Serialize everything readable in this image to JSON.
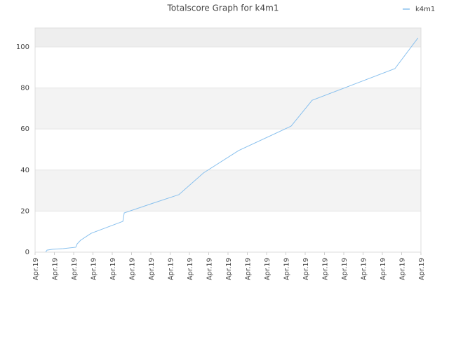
{
  "chart_data": {
    "type": "line",
    "title": "Totalscore Graph for k4m1",
    "x": [
      0.55,
      0.62,
      0.91,
      1.45,
      2.11,
      2.18,
      2.36,
      2.91,
      4.55,
      4.62,
      6,
      7.45,
      8.73,
      10.55,
      13.27,
      14.36,
      18.65,
      19.85
    ],
    "series": [
      {
        "name": "k4m1",
        "color": "#88c0ee",
        "values": [
          0,
          1,
          1.4,
          1.7,
          2.4,
          4,
          5.8,
          9.2,
          15,
          19.1,
          23.5,
          28,
          38.6,
          49.5,
          61.4,
          74,
          89.4,
          104.4
        ]
      }
    ],
    "xlim": [
      0,
      20
    ],
    "xticks": [
      {
        "value": 0,
        "label": "Apr.19"
      },
      {
        "value": 1,
        "label": "Apr.19"
      },
      {
        "value": 2,
        "label": "Apr.19"
      },
      {
        "value": 3,
        "label": "Apr.19"
      },
      {
        "value": 4,
        "label": "Apr.19"
      },
      {
        "value": 5,
        "label": "Apr.19"
      },
      {
        "value": 6,
        "label": "Apr.19"
      },
      {
        "value": 7,
        "label": "Apr.19"
      },
      {
        "value": 8,
        "label": "Apr.19"
      },
      {
        "value": 9,
        "label": "Apr.19"
      },
      {
        "value": 10,
        "label": "Apr.19"
      },
      {
        "value": 11,
        "label": "Apr.19"
      },
      {
        "value": 12,
        "label": "Apr.19"
      },
      {
        "value": 13,
        "label": "Apr.19"
      },
      {
        "value": 14,
        "label": "Apr.19"
      },
      {
        "value": 15,
        "label": "Apr.19"
      },
      {
        "value": 16,
        "label": "Apr.19"
      },
      {
        "value": 17,
        "label": "Apr.19"
      },
      {
        "value": 18,
        "label": "Apr.19"
      },
      {
        "value": 19,
        "label": "Apr.19"
      },
      {
        "value": 20,
        "label": "Apr.19"
      }
    ],
    "ylim": [
      0,
      109.2
    ],
    "yticks": [
      0,
      20,
      40,
      60,
      80,
      100
    ],
    "grid": true,
    "legend": "top-right"
  }
}
